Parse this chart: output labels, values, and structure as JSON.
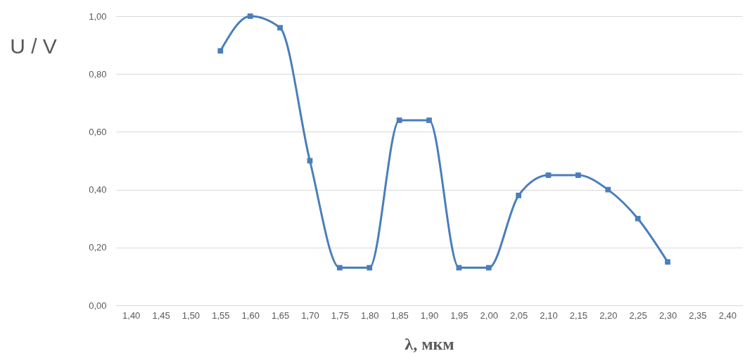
{
  "chart_data": {
    "type": "line",
    "xlabel": "λ, мкм",
    "ylabel": "U / V",
    "x": [
      1.55,
      1.6,
      1.65,
      1.7,
      1.75,
      1.8,
      1.85,
      1.9,
      1.95,
      2.0,
      2.05,
      2.1,
      2.15,
      2.2,
      2.25,
      2.3
    ],
    "series": [
      {
        "color": "#4a7ebb",
        "values": [
          0.88,
          1.0,
          0.96,
          0.5,
          0.13,
          0.13,
          0.64,
          0.64,
          0.13,
          0.13,
          0.38,
          0.45,
          0.45,
          0.4,
          0.3,
          0.15
        ]
      }
    ],
    "xlim": [
      1.375,
      2.425
    ],
    "xticks": [
      {
        "value": 1.4,
        "label": "1,40"
      },
      {
        "value": 1.45,
        "label": "1,45"
      },
      {
        "value": 1.5,
        "label": "1,50"
      },
      {
        "value": 1.55,
        "label": "1,55"
      },
      {
        "value": 1.6,
        "label": "1,60"
      },
      {
        "value": 1.65,
        "label": "1,65"
      },
      {
        "value": 1.7,
        "label": "1,70"
      },
      {
        "value": 1.75,
        "label": "1,75"
      },
      {
        "value": 1.8,
        "label": "1,80"
      },
      {
        "value": 1.85,
        "label": "1,85"
      },
      {
        "value": 1.9,
        "label": "1,90"
      },
      {
        "value": 1.95,
        "label": "1,95"
      },
      {
        "value": 2.0,
        "label": "2,00"
      },
      {
        "value": 2.05,
        "label": "2,05"
      },
      {
        "value": 2.1,
        "label": "2,10"
      },
      {
        "value": 2.15,
        "label": "2,15"
      },
      {
        "value": 2.2,
        "label": "2,20"
      },
      {
        "value": 2.25,
        "label": "2,25"
      },
      {
        "value": 2.3,
        "label": "2,30"
      },
      {
        "value": 2.35,
        "label": "2,35"
      },
      {
        "value": 2.4,
        "label": "2,40"
      }
    ],
    "ylim": [
      0,
      1
    ],
    "yticks": [
      {
        "value": 0,
        "label": "0,00"
      },
      {
        "value": 0.2,
        "label": "0,20"
      },
      {
        "value": 0.4,
        "label": "0,40"
      },
      {
        "value": 0.6,
        "label": "0,60"
      },
      {
        "value": 0.8,
        "label": "0,80"
      },
      {
        "value": 1.0,
        "label": "1,00"
      }
    ],
    "grid": "y",
    "marker": "square",
    "line_style": "solid",
    "legend": false
  }
}
